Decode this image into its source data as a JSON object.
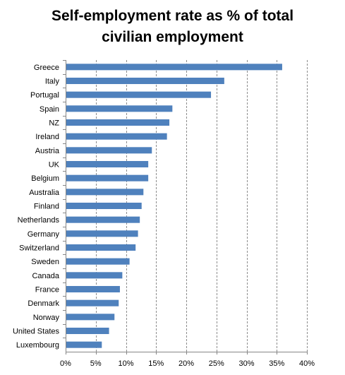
{
  "chart_data": {
    "type": "bar",
    "orientation": "horizontal",
    "title": "Self-employment rate as % of total civilian employment",
    "title_lines": [
      "Self-employment rate as % of total",
      "civilian employment"
    ],
    "categories": [
      "Greece",
      "Italy",
      "Portugal",
      "Spain",
      "NZ",
      "Ireland",
      "Austria",
      "UK",
      "Belgium",
      "Australia",
      "Finland",
      "Netherlands",
      "Germany",
      "Switzerland",
      "Sweden",
      "Canada",
      "France",
      "Denmark",
      "Norway",
      "United States",
      "Luxembourg"
    ],
    "values": [
      35.9,
      26.3,
      24.1,
      17.7,
      17.2,
      16.8,
      14.3,
      13.7,
      13.7,
      12.9,
      12.6,
      12.3,
      12.0,
      11.6,
      10.6,
      9.4,
      9.0,
      8.8,
      8.1,
      7.2,
      6.0
    ],
    "xlim": [
      0,
      40
    ],
    "x_ticks": [
      "0%",
      "5%",
      "10%",
      "15%",
      "20%",
      "25%",
      "30%",
      "35%",
      "40%"
    ],
    "grid": true,
    "bar_color": "#4f81bd",
    "xlabel": "",
    "ylabel": ""
  }
}
